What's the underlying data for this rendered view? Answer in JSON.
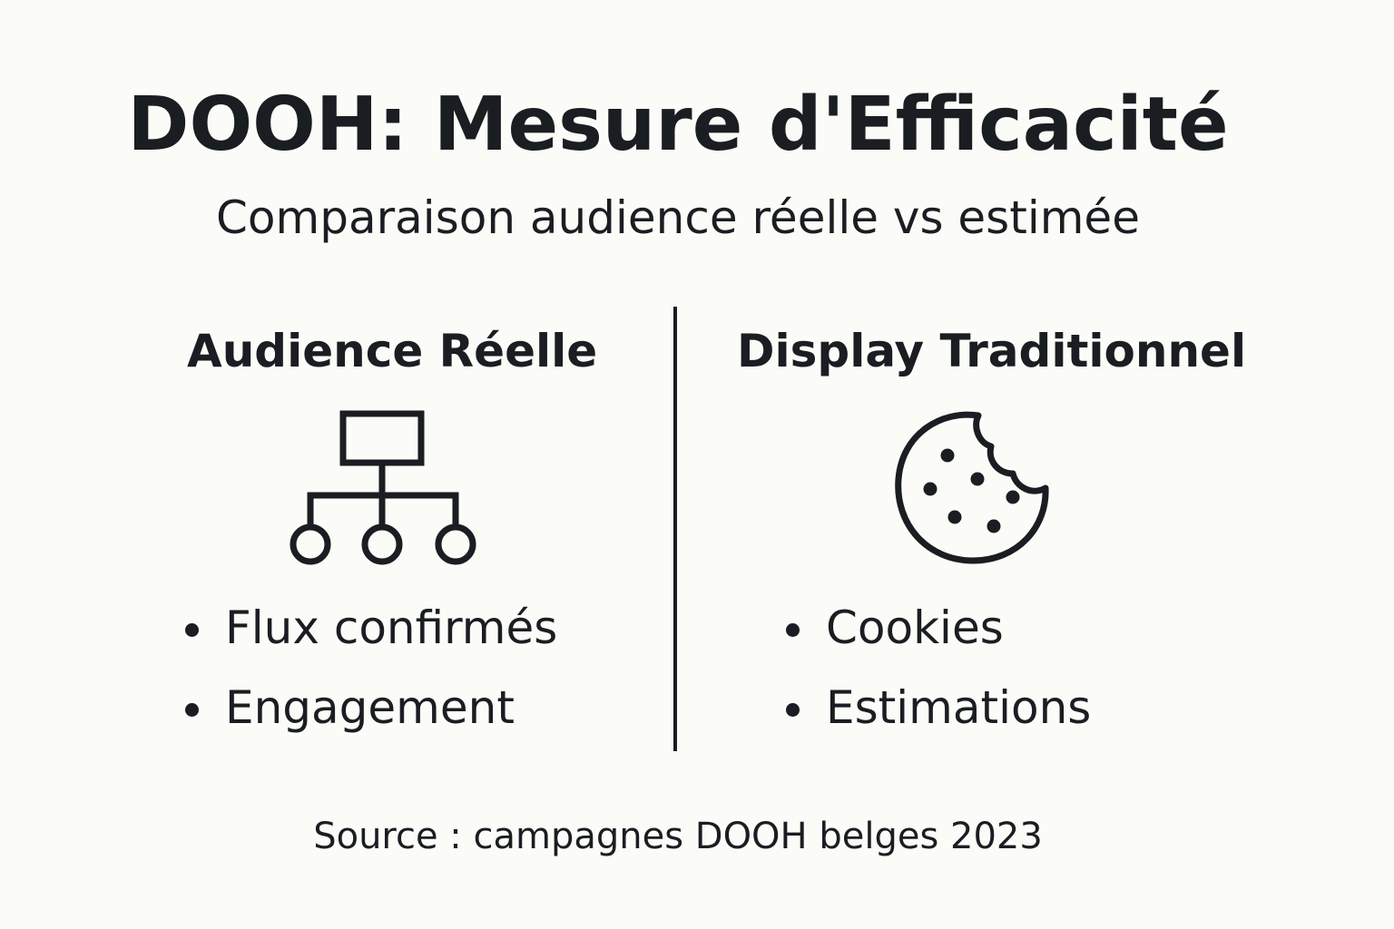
{
  "header": {
    "title": "DOOH: Mesure d'Efficacité",
    "subtitle": "Comparaison audience réelle vs estimée"
  },
  "columns": [
    {
      "heading": "Audience Réelle",
      "icon": "hierarchy-network-icon",
      "bullets": [
        "Flux confirmés",
        "Engagement"
      ]
    },
    {
      "heading": "Display Traditionnel",
      "icon": "cookie-icon",
      "bullets": [
        "Cookies",
        "Estimations"
      ]
    }
  ],
  "footer": {
    "source": "Source : campagnes DOOH belges 2023"
  },
  "colors": {
    "background": "#fbfbf8",
    "text": "#1a1d21"
  }
}
